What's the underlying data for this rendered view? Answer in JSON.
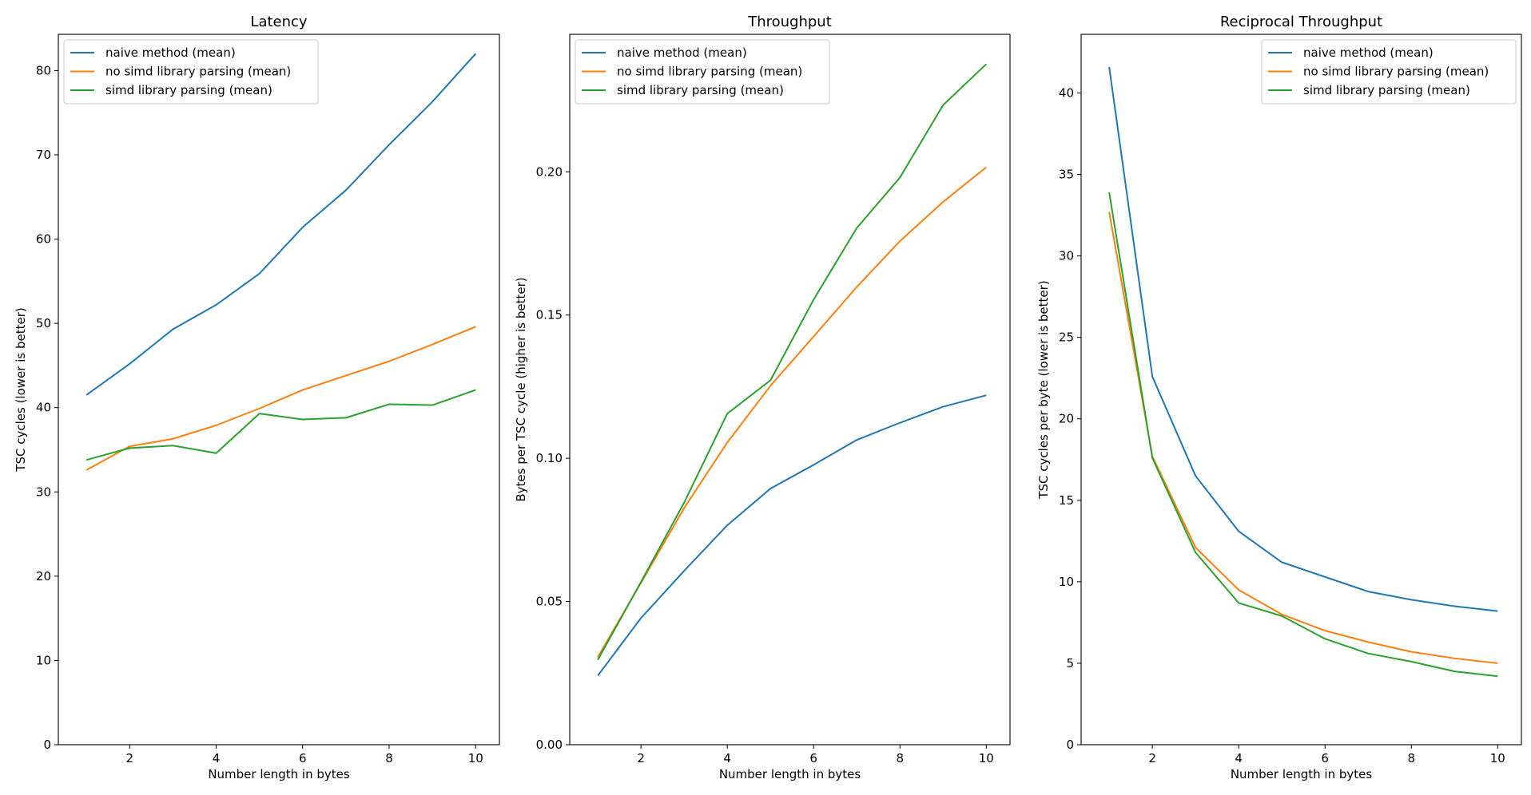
{
  "colors": {
    "blue": "#1f77b4",
    "orange": "#ff7f0e",
    "green": "#2ca02c"
  },
  "chart_data": [
    {
      "type": "line",
      "title": "Latency",
      "xlabel": "Number length in bytes",
      "ylabel": "TSC cycles (lower is better)",
      "x": [
        1,
        2,
        3,
        4,
        5,
        6,
        7,
        8,
        9,
        10
      ],
      "xlim": [
        0.35,
        10.55
      ],
      "ylim": [
        0,
        84.3
      ],
      "xticks": [
        2,
        4,
        6,
        8,
        10
      ],
      "xtick_labels": [
        "2",
        "4",
        "6",
        "8",
        "10"
      ],
      "yticks": [
        0,
        10,
        20,
        30,
        40,
        50,
        60,
        70,
        80
      ],
      "ytick_labels": [
        "0",
        "10",
        "20",
        "30",
        "40",
        "50",
        "60",
        "70",
        "80"
      ],
      "legend_position": "upper-left",
      "series": [
        {
          "name": "naive method (mean)",
          "color": "#1f77b4",
          "values": [
            41.5,
            45.2,
            49.3,
            52.2,
            55.9,
            61.4,
            65.8,
            71.2,
            76.3,
            82.0
          ]
        },
        {
          "name": "no simd library parsing (mean)",
          "color": "#ff7f0e",
          "values": [
            32.6,
            35.4,
            36.3,
            37.9,
            39.9,
            42.1,
            43.8,
            45.5,
            47.5,
            49.6
          ]
        },
        {
          "name": "simd library parsing (mean)",
          "color": "#2ca02c",
          "values": [
            33.8,
            35.2,
            35.5,
            34.6,
            39.3,
            38.6,
            38.8,
            40.4,
            40.3,
            42.1
          ]
        }
      ]
    },
    {
      "type": "line",
      "title": "Throughput",
      "xlabel": "Number length in bytes",
      "ylabel": "Bytes per TSC cycle (higher is better)",
      "x": [
        1,
        2,
        3,
        4,
        5,
        6,
        7,
        8,
        9,
        10
      ],
      "xlim": [
        0.35,
        10.55
      ],
      "ylim": [
        0,
        0.248
      ],
      "xticks": [
        2,
        4,
        6,
        8,
        10
      ],
      "xtick_labels": [
        "2",
        "4",
        "6",
        "8",
        "10"
      ],
      "yticks": [
        0,
        0.05,
        0.1,
        0.15,
        0.2
      ],
      "ytick_labels": [
        "0.00",
        "0.05",
        "0.10",
        "0.15",
        "0.20"
      ],
      "legend_position": "upper-left",
      "series": [
        {
          "name": "naive method (mean)",
          "color": "#1f77b4",
          "values": [
            0.0241,
            0.0442,
            0.0607,
            0.0766,
            0.0894,
            0.0977,
            0.1064,
            0.1124,
            0.118,
            0.122
          ]
        },
        {
          "name": "no simd library parsing (mean)",
          "color": "#ff7f0e",
          "values": [
            0.0306,
            0.0565,
            0.0826,
            0.1055,
            0.1253,
            0.1425,
            0.1598,
            0.1758,
            0.1895,
            0.2016
          ]
        },
        {
          "name": "simd library parsing (mean)",
          "color": "#2ca02c",
          "values": [
            0.0296,
            0.0568,
            0.0845,
            0.1156,
            0.1272,
            0.1554,
            0.1804,
            0.198,
            0.2233,
            0.2376
          ]
        }
      ]
    },
    {
      "type": "line",
      "title": "Reciprocal Throughput",
      "xlabel": "Number length in bytes",
      "ylabel": "TSC cycles per byte (lower is better)",
      "x": [
        1,
        2,
        3,
        4,
        5,
        6,
        7,
        8,
        9,
        10
      ],
      "xlim": [
        0.35,
        10.55
      ],
      "ylim": [
        0,
        43.6
      ],
      "xticks": [
        2,
        4,
        6,
        8,
        10
      ],
      "xtick_labels": [
        "2",
        "4",
        "6",
        "8",
        "10"
      ],
      "yticks": [
        0,
        5,
        10,
        15,
        20,
        25,
        30,
        35,
        40
      ],
      "ytick_labels": [
        "0",
        "5",
        "10",
        "15",
        "20",
        "25",
        "30",
        "35",
        "40"
      ],
      "legend_position": "upper-right",
      "series": [
        {
          "name": "naive method (mean)",
          "color": "#1f77b4",
          "values": [
            41.6,
            22.6,
            16.5,
            13.1,
            11.2,
            10.3,
            9.4,
            8.9,
            8.5,
            8.2
          ]
        },
        {
          "name": "no simd library parsing (mean)",
          "color": "#ff7f0e",
          "values": [
            32.7,
            17.7,
            12.1,
            9.5,
            8.0,
            7.0,
            6.3,
            5.7,
            5.3,
            5.0
          ]
        },
        {
          "name": "simd library parsing (mean)",
          "color": "#2ca02c",
          "values": [
            33.9,
            17.6,
            11.8,
            8.7,
            7.9,
            6.5,
            5.6,
            5.1,
            4.5,
            4.2
          ]
        }
      ]
    }
  ]
}
